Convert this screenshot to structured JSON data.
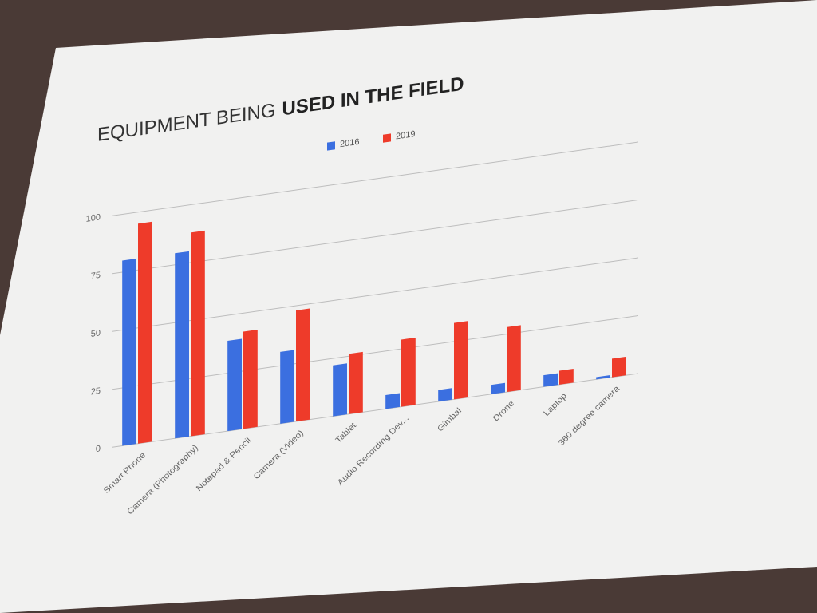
{
  "chart_data": {
    "type": "bar",
    "title": [
      "EQUIPMENT BEING",
      "USED IN THE FIELD"
    ],
    "categories": [
      "Smart Phone",
      "Camera (Photography)",
      "Notepad & Pencil",
      "Camera (Video)",
      "Tablet",
      "Audio Recording Dev...",
      "Gimbal",
      "Drone",
      "Laptop",
      "360 degree camera"
    ],
    "series": [
      {
        "name": "2016",
        "color": "#3b6fe0",
        "values": [
          80,
          80,
          39,
          31,
          22,
          6,
          5,
          4,
          5,
          1
        ]
      },
      {
        "name": "2019",
        "color": "#ee3b2a",
        "values": [
          95,
          88,
          42,
          48,
          26,
          29,
          33,
          28,
          6,
          8
        ]
      }
    ],
    "ylim": [
      0,
      100
    ],
    "yticks": [
      0,
      25,
      50,
      75,
      100
    ],
    "grid": true,
    "legend": "top"
  }
}
